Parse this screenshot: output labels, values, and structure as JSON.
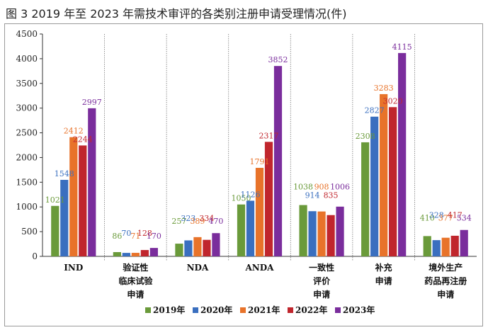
{
  "figure_title": "图 3   2019 年至 2023 年需技术审评的各类别注册申请受理情况(件)",
  "chart_data": {
    "type": "bar",
    "title": "",
    "xlabel": "",
    "ylabel": "",
    "ylim": [
      0,
      4500
    ],
    "yticks": [
      0,
      500,
      1000,
      1500,
      2000,
      2500,
      3000,
      3500,
      4000,
      4500
    ],
    "grid": false,
    "legend_position": "bottom",
    "categories": [
      [
        "IND"
      ],
      [
        "验证性",
        "临床试验",
        "申请"
      ],
      [
        "NDA"
      ],
      [
        "ANDA"
      ],
      [
        "一致性",
        "评价",
        "申请"
      ],
      [
        "补充",
        "申请"
      ],
      [
        "境外生产",
        "药品再注册",
        "申请"
      ]
    ],
    "series": [
      {
        "name": "2019年",
        "color": "#6a9a3a",
        "values": [
          1021,
          86,
          257,
          1050,
          1038,
          2308,
          410
        ]
      },
      {
        "name": "2020年",
        "color": "#3a6fbf",
        "values": [
          1548,
          70,
          323,
          1126,
          914,
          2827,
          328
        ]
      },
      {
        "name": "2021年",
        "color": "#e8732a",
        "values": [
          2412,
          71,
          389,
          1791,
          908,
          3283,
          377
        ]
      },
      {
        "name": "2022年",
        "color": "#c0262d",
        "values": [
          2244,
          128,
          334,
          2317,
          835,
          3020,
          417
        ]
      },
      {
        "name": "2023年",
        "color": "#7a2d9c",
        "values": [
          2997,
          170,
          470,
          3852,
          1006,
          4115,
          534
        ]
      }
    ],
    "data_labels": [
      [
        "1021",
        "86",
        "257",
        "1050",
        "1038",
        "2308",
        "410"
      ],
      [
        "1548",
        "70",
        "323",
        "1126",
        "914",
        "2827",
        "328"
      ],
      [
        "2412",
        "71",
        "389",
        "1791",
        "908",
        "3283",
        "377"
      ],
      [
        "2244",
        "128",
        "334",
        "2317",
        "835",
        "3020",
        "417"
      ],
      [
        "2997",
        "170",
        "470",
        "3852",
        "1006",
        "4115",
        "534"
      ]
    ]
  }
}
